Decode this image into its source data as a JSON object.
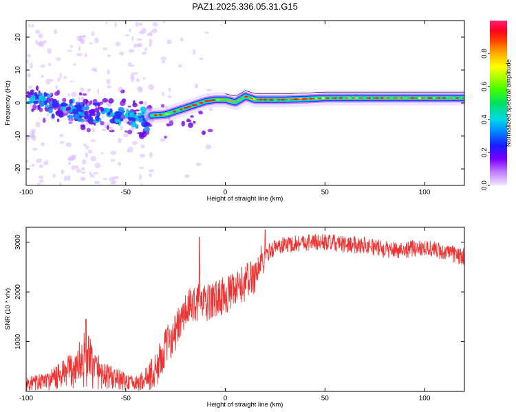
{
  "title": "PAZ1.2025.336.05.31.G15",
  "chart_data": [
    {
      "type": "heatmap",
      "xlabel": "Height of straight line (km)",
      "ylabel": "Frequency (Hz)",
      "xlim": [
        -100,
        120
      ],
      "ylim": [
        -25,
        25
      ],
      "xticks": [
        -100,
        -50,
        0,
        50,
        100
      ],
      "yticks": [
        -20,
        -10,
        0,
        10,
        20
      ],
      "colorbar": {
        "label": "Normalized spectral amplitude",
        "ticks": [
          0.0,
          0.2,
          0.4,
          0.6,
          0.8
        ],
        "range": [
          0,
          1
        ]
      },
      "ridge": {
        "x": [
          -37,
          -30,
          -25,
          -20,
          -15,
          -10,
          -5,
          0,
          5,
          8,
          10,
          15,
          20,
          30,
          40,
          50,
          60,
          70,
          80,
          90,
          100,
          110,
          120
        ],
        "y": [
          -3.8,
          -3.5,
          -2.5,
          -1.5,
          -0.5,
          0.5,
          1,
          1,
          0.2,
          1.2,
          2,
          1,
          1,
          1,
          1.2,
          1.5,
          1.5,
          1.5,
          1.5,
          1.5,
          1.5,
          1.5,
          1.5
        ]
      },
      "scatter_region": {
        "x": [
          -100,
          -37
        ],
        "center_y": [
          2,
          -1,
          -3,
          -4,
          -4.5,
          -5
        ],
        "spread_y": 25
      }
    },
    {
      "type": "line",
      "xlabel": "Height of straight line (km)",
      "ylabel": "SNR (10 * v/v)",
      "xlim": [
        -100,
        120
      ],
      "ylim": [
        0,
        3300
      ],
      "xticks": [
        -100,
        -50,
        0,
        50,
        100
      ],
      "yticks": [
        1000,
        2000,
        3000
      ],
      "color": "#ee3333",
      "series": [
        {
          "name": "SNR",
          "x": [
            -100,
            -90,
            -80,
            -75,
            -70,
            -65,
            -60,
            -55,
            -50,
            -45,
            -40,
            -35,
            -30,
            -25,
            -20,
            -15,
            -10,
            -5,
            0,
            5,
            10,
            15,
            20,
            25,
            30,
            40,
            50,
            60,
            70,
            80,
            90,
            100,
            110,
            120
          ],
          "y": [
            150,
            200,
            350,
            500,
            650,
            450,
            300,
            250,
            200,
            150,
            250,
            400,
            900,
            1200,
            1600,
            1800,
            1750,
            1850,
            1950,
            2000,
            2200,
            2350,
            2750,
            2900,
            2950,
            3000,
            3000,
            2950,
            2950,
            2850,
            2850,
            2900,
            2800,
            2700
          ]
        }
      ],
      "spikes": [
        {
          "x": -70,
          "y": 1450
        },
        {
          "x": -13,
          "y": 3100
        },
        {
          "x": 20,
          "y": 3250
        }
      ]
    }
  ]
}
